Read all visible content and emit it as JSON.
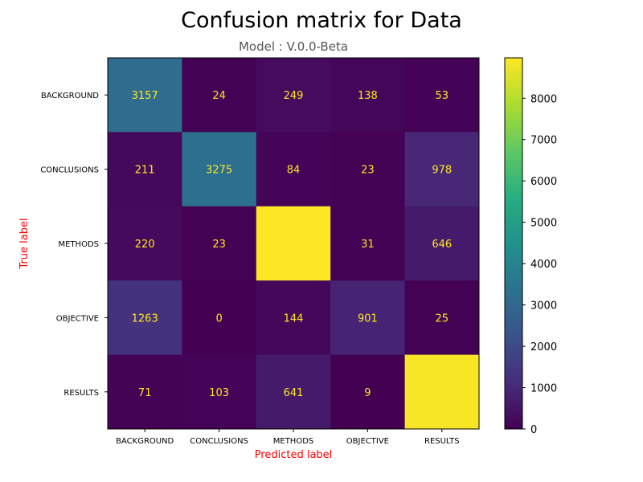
{
  "chart_data": {
    "type": "heatmap",
    "title": "Confusion matrix for Data",
    "subtitle": "Model : V.0.0-Beta",
    "xlabel": "Predicted label",
    "ylabel": "True label",
    "x_categories": [
      "BACKGROUND",
      "CONCLUSIONS",
      "METHODS",
      "OBJECTIVE",
      "RESULTS"
    ],
    "y_categories": [
      "BACKGROUND",
      "CONCLUSIONS",
      "METHODS",
      "OBJECTIVE",
      "RESULTS"
    ],
    "matrix": [
      [
        3157,
        24,
        249,
        138,
        53
      ],
      [
        211,
        3275,
        84,
        23,
        978
      ],
      [
        220,
        23,
        8977,
        31,
        646
      ],
      [
        1263,
        0,
        144,
        901,
        25
      ],
      [
        71,
        103,
        641,
        9,
        8889
      ]
    ],
    "colormap": "viridis",
    "colorbar_range": [
      0,
      8977
    ],
    "colorbar_ticks": [
      0,
      1000,
      2000,
      3000,
      4000,
      5000,
      6000,
      7000,
      8000
    ],
    "grid": false,
    "colors": {
      "cell_text": "#fde725",
      "axis_label": "#ff0000",
      "subtitle": "#555555"
    }
  }
}
